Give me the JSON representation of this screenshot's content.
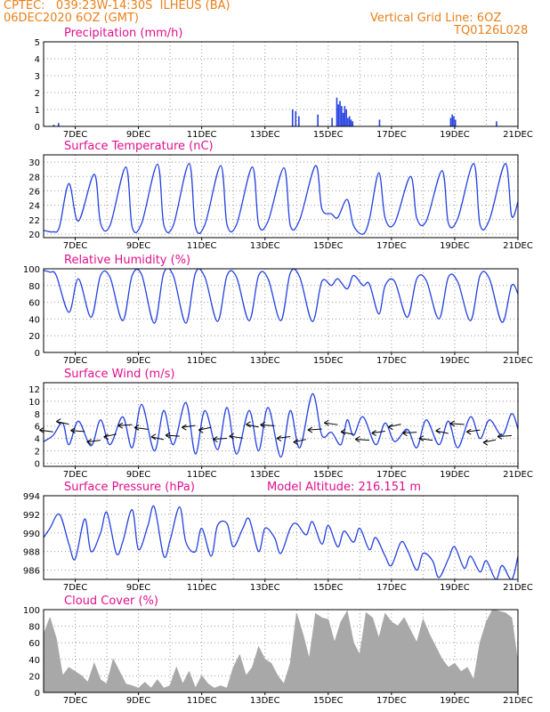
{
  "header": {
    "line1": "CPTEC:   039:23W-14:30S  ILHEUS (BA)",
    "line2": "06DEC2020 6OZ (GMT)",
    "right1": "Vertical Grid Line: 6OZ",
    "right2": "TQ0126L028"
  },
  "colors": {
    "line": "#2440e0",
    "cloud": "#a8a8a8",
    "header": "#e8801a",
    "title": "#e0108c"
  },
  "chart_data": [
    {
      "type": "bar",
      "id": "precip",
      "title": "Precipitation (mm/h)",
      "ylim": [
        0,
        5
      ],
      "yticks": [
        0,
        1,
        2,
        3,
        4,
        5
      ],
      "xlabels": [
        "7DEC",
        "9DEC",
        "11DEC",
        "13DEC",
        "15DEC",
        "17DEC",
        "19DEC",
        "21DEC"
      ],
      "xrange_days": [
        6.0,
        21.0
      ],
      "x": [
        6.3,
        6.45,
        13.85,
        13.95,
        14.05,
        14.65,
        15.1,
        15.25,
        15.3,
        15.35,
        15.4,
        15.45,
        15.5,
        15.55,
        15.6,
        15.65,
        15.7,
        15.75,
        16.6,
        18.85,
        18.9,
        18.95,
        19.0,
        20.3
      ],
      "values": [
        0.1,
        0.2,
        1.0,
        0.9,
        0.6,
        0.7,
        0.5,
        1.7,
        1.3,
        1.5,
        1.2,
        0.8,
        1.2,
        1.0,
        0.5,
        0.6,
        0.4,
        0.3,
        0.4,
        0.5,
        0.7,
        0.6,
        0.4,
        0.3
      ]
    },
    {
      "type": "line",
      "id": "temp",
      "title": "Surface Temperature (nC)",
      "ylim": [
        19.5,
        31
      ],
      "yticks": [
        20,
        22,
        24,
        26,
        28,
        30
      ],
      "xlabels": [
        "7DEC",
        "9DEC",
        "11DEC",
        "13DEC",
        "15DEC",
        "17DEC",
        "19DEC",
        "21DEC"
      ],
      "xrange_days": [
        6.0,
        21.0
      ],
      "x": [
        6.0,
        6.3,
        6.5,
        6.8,
        7.1,
        7.6,
        7.8,
        8.1,
        8.6,
        8.8,
        9.1,
        9.6,
        9.8,
        10.1,
        10.6,
        10.8,
        11.1,
        11.6,
        11.8,
        12.1,
        12.6,
        12.8,
        13.1,
        13.6,
        13.8,
        14.1,
        14.6,
        14.8,
        15.1,
        15.3,
        15.6,
        15.8,
        16.1,
        16.3,
        16.6,
        16.8,
        17.1,
        17.6,
        17.8,
        18.1,
        18.6,
        18.8,
        19.1,
        19.6,
        19.8,
        20.1,
        20.6,
        20.8,
        21.0
      ],
      "values": [
        20.5,
        20.3,
        21.0,
        27.0,
        21.8,
        28.3,
        21.5,
        21.2,
        29.3,
        21.0,
        21.5,
        29.7,
        21.3,
        21.2,
        29.8,
        21.0,
        21.3,
        29.5,
        21.3,
        21.3,
        29.3,
        21.3,
        21.8,
        29.2,
        21.2,
        22.0,
        29.5,
        23.5,
        22.8,
        22.3,
        24.8,
        21.2,
        20.0,
        22.0,
        28.5,
        22.2,
        21.5,
        28.0,
        22.2,
        21.8,
        28.8,
        21.5,
        22.2,
        29.8,
        21.3,
        22.0,
        29.8,
        22.5,
        24.5
      ]
    },
    {
      "type": "line",
      "id": "rh",
      "title": "Relative Humidity (%)",
      "ylim": [
        0,
        100
      ],
      "yticks": [
        0,
        20,
        40,
        60,
        80,
        100
      ],
      "xlabels": [
        "7DEC",
        "9DEC",
        "11DEC",
        "13DEC",
        "15DEC",
        "17DEC",
        "19DEC",
        "21DEC"
      ],
      "xrange_days": [
        6.0,
        21.0
      ],
      "x": [
        6.0,
        6.2,
        6.4,
        6.8,
        7.1,
        7.5,
        7.8,
        8.1,
        8.5,
        8.8,
        9.1,
        9.5,
        9.8,
        10.1,
        10.5,
        10.8,
        11.1,
        11.5,
        11.8,
        12.1,
        12.5,
        12.8,
        13.1,
        13.5,
        13.8,
        14.1,
        14.5,
        14.8,
        15.1,
        15.3,
        15.6,
        15.8,
        16.1,
        16.3,
        16.6,
        16.8,
        17.1,
        17.5,
        17.8,
        18.1,
        18.5,
        18.8,
        19.1,
        19.5,
        19.8,
        20.1,
        20.5,
        20.8,
        21.0
      ],
      "values": [
        98,
        96,
        92,
        48,
        88,
        42,
        92,
        90,
        38,
        92,
        93,
        35,
        95,
        92,
        35,
        95,
        90,
        37,
        92,
        90,
        38,
        92,
        88,
        38,
        95,
        90,
        37,
        85,
        80,
        88,
        76,
        92,
        80,
        82,
        46,
        80,
        85,
        42,
        88,
        86,
        40,
        90,
        84,
        38,
        92,
        88,
        36,
        80,
        70
      ]
    },
    {
      "type": "line",
      "id": "wind",
      "title": "Surface Wind (m/s)",
      "ylim": [
        -0.5,
        13
      ],
      "yticks": [
        0,
        2,
        4,
        6,
        8,
        10,
        12
      ],
      "xlabels": [
        "7DEC",
        "9DEC",
        "11DEC",
        "13DEC",
        "15DEC",
        "17DEC",
        "19DEC",
        "21DEC"
      ],
      "xrange_days": [
        6.0,
        21.0
      ],
      "x": [
        6.0,
        6.3,
        6.6,
        6.8,
        7.1,
        7.5,
        7.8,
        8.1,
        8.5,
        8.8,
        9.1,
        9.5,
        9.8,
        10.1,
        10.5,
        10.8,
        11.1,
        11.5,
        11.8,
        12.1,
        12.5,
        12.8,
        13.1,
        13.5,
        13.8,
        14.1,
        14.5,
        14.8,
        15.1,
        15.4,
        15.6,
        15.8,
        16.1,
        16.5,
        16.8,
        17.1,
        17.5,
        17.8,
        18.1,
        18.5,
        18.8,
        19.1,
        19.5,
        19.8,
        20.1,
        20.5,
        20.8,
        21.0
      ],
      "values": [
        3.5,
        4.5,
        6.5,
        3.0,
        6.8,
        2.8,
        7.0,
        3.0,
        7.5,
        2.5,
        9.5,
        2.0,
        8.5,
        3.0,
        9.8,
        1.5,
        8.5,
        2.2,
        9.0,
        1.5,
        8.5,
        2.0,
        9.0,
        1.0,
        8.5,
        2.5,
        11.2,
        4.5,
        5.0,
        3.0,
        7.0,
        4.5,
        7.5,
        3.0,
        6.5,
        3.5,
        5.5,
        2.5,
        7.0,
        3.0,
        6.8,
        2.5,
        7.5,
        4.0,
        7.0,
        4.5,
        8.0,
        5.5
      ]
    },
    {
      "type": "line",
      "id": "press",
      "title": "Surface Pressure (hPa)",
      "ylim": [
        985,
        994
      ],
      "yticks": [
        986,
        988,
        990,
        992,
        994
      ],
      "xlabels": [
        "7DEC",
        "9DEC",
        "11DEC",
        "13DEC",
        "15DEC",
        "17DEC",
        "19DEC",
        "21DEC"
      ],
      "xrange_days": [
        6.0,
        21.0
      ],
      "x": [
        6.0,
        6.2,
        6.5,
        6.8,
        7.0,
        7.3,
        7.5,
        7.8,
        8.0,
        8.3,
        8.5,
        8.8,
        9.0,
        9.3,
        9.5,
        9.8,
        10.0,
        10.3,
        10.5,
        10.8,
        11.0,
        11.3,
        11.5,
        11.8,
        12.0,
        12.3,
        12.5,
        12.8,
        13.0,
        13.3,
        13.5,
        13.8,
        14.0,
        14.3,
        14.5,
        14.8,
        15.0,
        15.3,
        15.5,
        15.8,
        16.0,
        16.3,
        16.5,
        16.8,
        17.0,
        17.3,
        17.5,
        17.8,
        18.0,
        18.3,
        18.5,
        18.8,
        19.0,
        19.3,
        19.5,
        19.8,
        20.0,
        20.3,
        20.5,
        20.8,
        21.0
      ],
      "values": [
        989.5,
        990.5,
        992.0,
        988.8,
        987.2,
        991.5,
        988.0,
        990.0,
        992.2,
        987.8,
        989.0,
        992.5,
        988.2,
        990.8,
        992.8,
        987.5,
        989.2,
        992.8,
        989.0,
        988.0,
        990.5,
        987.5,
        990.8,
        991.0,
        988.5,
        990.5,
        991.5,
        988.0,
        990.5,
        989.5,
        987.8,
        990.5,
        991.0,
        989.8,
        991.2,
        988.8,
        990.8,
        988.5,
        990.2,
        989.0,
        990.5,
        988.2,
        989.5,
        987.5,
        986.5,
        989.0,
        988.2,
        986.0,
        987.8,
        987.0,
        985.2,
        987.2,
        988.5,
        986.2,
        987.5,
        985.8,
        987.0,
        985.0,
        986.5,
        985.0,
        987.5
      ]
    },
    {
      "type": "area",
      "id": "cloud",
      "title": "Cloud Cover (%)",
      "ylim": [
        0,
        100
      ],
      "yticks": [
        0,
        20,
        40,
        60,
        80,
        100
      ],
      "xlabels": [
        "7DEC",
        "9DEC",
        "11DEC",
        "13DEC",
        "15DEC",
        "17DEC",
        "19DEC",
        "21DEC"
      ],
      "xrange_days": [
        6.0,
        21.0
      ],
      "x": [
        6.0,
        6.2,
        6.4,
        6.6,
        6.8,
        7.0,
        7.2,
        7.4,
        7.6,
        7.8,
        8.0,
        8.2,
        8.4,
        8.6,
        8.8,
        9.0,
        9.2,
        9.4,
        9.6,
        9.8,
        10.0,
        10.2,
        10.4,
        10.6,
        10.8,
        11.0,
        11.2,
        11.4,
        11.6,
        11.8,
        12.0,
        12.2,
        12.4,
        12.6,
        12.8,
        13.0,
        13.2,
        13.4,
        13.6,
        13.8,
        14.0,
        14.2,
        14.4,
        14.6,
        14.8,
        15.0,
        15.2,
        15.4,
        15.6,
        15.8,
        16.0,
        16.2,
        16.4,
        16.6,
        16.8,
        17.0,
        17.2,
        17.4,
        17.6,
        17.8,
        18.0,
        18.2,
        18.4,
        18.6,
        18.8,
        19.0,
        19.2,
        19.4,
        19.6,
        19.8,
        20.0,
        20.2,
        20.4,
        20.6,
        20.8,
        21.0
      ],
      "values": [
        70,
        90,
        65,
        20,
        30,
        25,
        20,
        12,
        35,
        15,
        10,
        40,
        25,
        10,
        8,
        5,
        12,
        5,
        15,
        5,
        8,
        30,
        10,
        25,
        5,
        20,
        10,
        5,
        8,
        5,
        30,
        45,
        20,
        30,
        55,
        40,
        35,
        20,
        10,
        35,
        95,
        70,
        40,
        95,
        90,
        88,
        60,
        85,
        98,
        60,
        45,
        96,
        90,
        65,
        95,
        85,
        80,
        90,
        75,
        60,
        88,
        70,
        55,
        40,
        30,
        35,
        25,
        30,
        15,
        60,
        85,
        100,
        98,
        96,
        90,
        35
      ]
    }
  ],
  "panel_titles": {
    "precip": "Precipitation (mm/h)",
    "temp": "Surface Temperature (nC)",
    "rh": "Relative Humidity (%)",
    "wind": "Surface Wind (m/s)",
    "press": "Surface Pressure (hPa)",
    "altitude": "Model Altitude: 216.151 m",
    "cloud": "Cloud Cover (%)"
  }
}
